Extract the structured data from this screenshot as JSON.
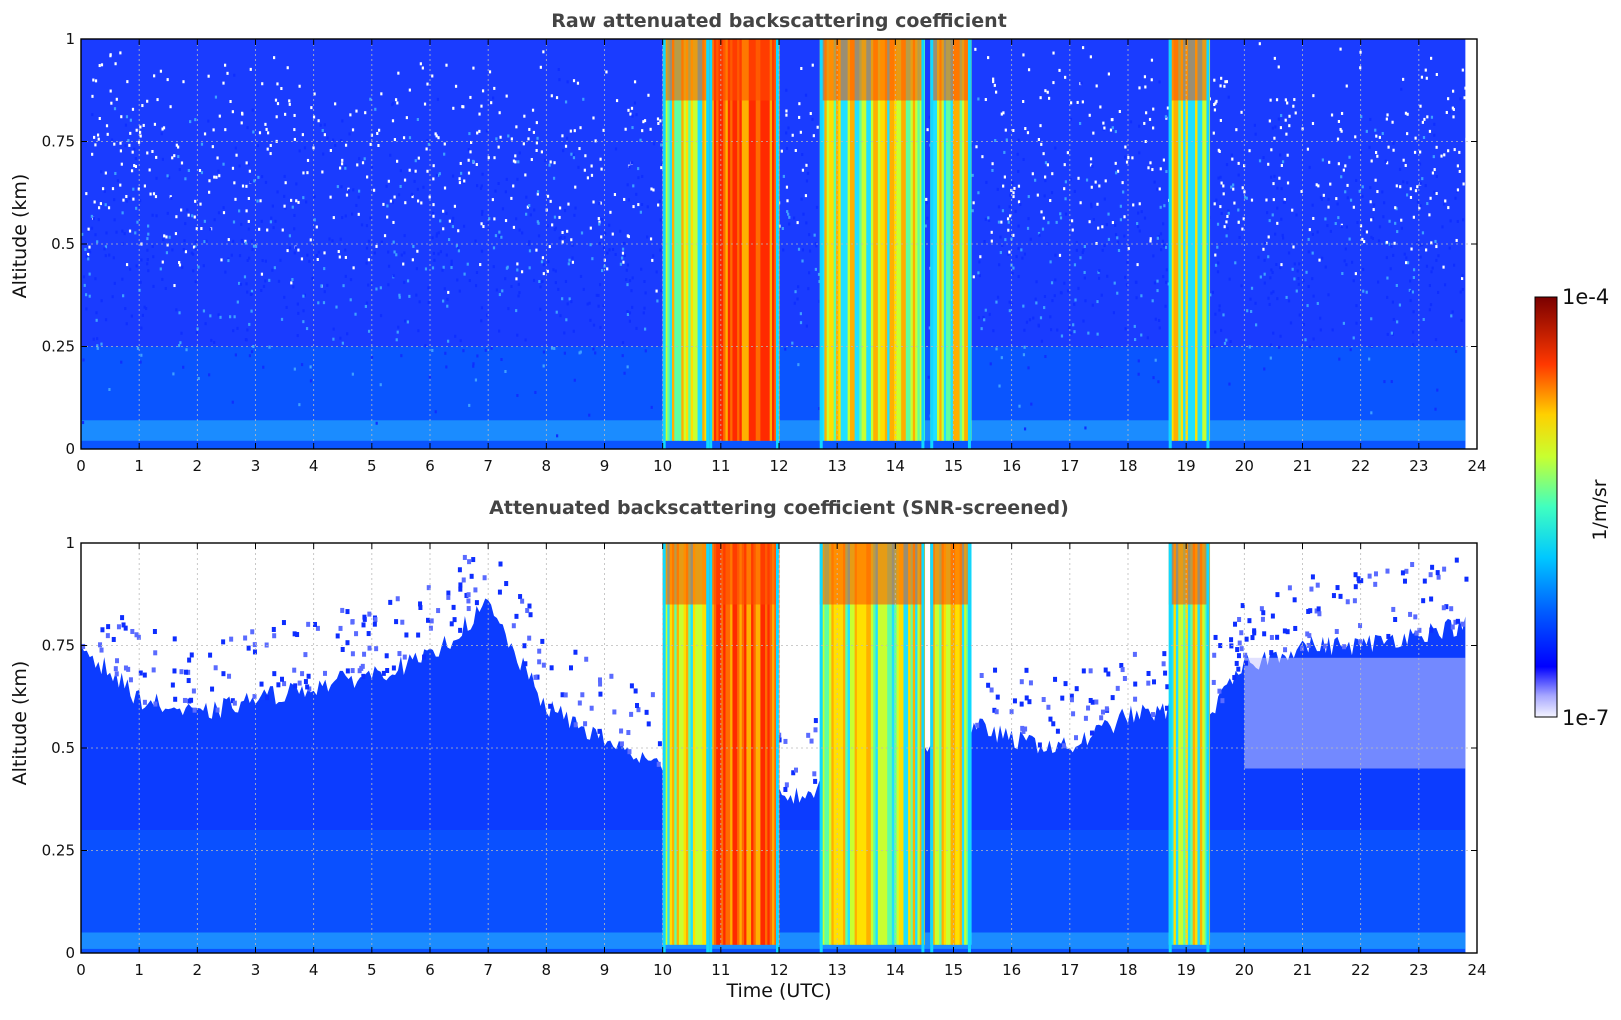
{
  "figure": {
    "colorbar": {
      "label": "1/m/sr",
      "max_label": "1e-4",
      "min_label": "1e-7",
      "scale": "log",
      "colormap": "jet (white-to-blue at low end, dark red at high end)"
    }
  },
  "chart_data": [
    {
      "type": "heatmap",
      "title": "Raw attenuated backscattering coefficient",
      "xlabel": "",
      "ylabel": "Altitude (km)",
      "xlim": [
        0,
        24
      ],
      "ylim": [
        0,
        1
      ],
      "xticks": [
        "0",
        "1",
        "2",
        "3",
        "4",
        "5",
        "6",
        "7",
        "8",
        "9",
        "10",
        "11",
        "12",
        "13",
        "14",
        "15",
        "16",
        "17",
        "18",
        "19",
        "20",
        "21",
        "22",
        "23",
        "24"
      ],
      "yticks": [
        "0",
        "0.25",
        "0.5",
        "0.75",
        "1"
      ],
      "grid": true,
      "data_extent_x": [
        0,
        23.8
      ],
      "background": "noisy blue (~1e-6) throughout, lighter/white speckle aloft",
      "cloud_bands": [
        {
          "start": 10.0,
          "end": 10.8,
          "intensity": "mixed green-red streaks"
        },
        {
          "start": 10.8,
          "end": 12.0,
          "intensity": "red-orange core, peak near 1e-4"
        },
        {
          "start": 12.7,
          "end": 14.5,
          "intensity": "yellow-green, red-orange top"
        },
        {
          "start": 14.6,
          "end": 15.3,
          "intensity": "yellow-green with red top"
        },
        {
          "start": 18.7,
          "end": 19.4,
          "intensity": "yellow-green with red streaks"
        }
      ]
    },
    {
      "type": "heatmap",
      "title": "Attenuated backscattering coefficient (SNR-screened)",
      "xlabel": "Time (UTC)",
      "ylabel": "Altitude (km)",
      "xlim": [
        0,
        24
      ],
      "ylim": [
        0,
        1
      ],
      "xticks": [
        "0",
        "1",
        "2",
        "3",
        "4",
        "5",
        "6",
        "7",
        "8",
        "9",
        "10",
        "11",
        "12",
        "13",
        "14",
        "15",
        "16",
        "17",
        "18",
        "19",
        "20",
        "21",
        "22",
        "23",
        "24"
      ],
      "yticks": [
        "0",
        "0.25",
        "0.5",
        "0.75",
        "1"
      ],
      "grid": true,
      "data_extent_x": [
        0,
        23.8
      ],
      "background": "blue boundary layer, white (screened) above a variable top",
      "screened_top_km": [
        [
          0,
          0.75
        ],
        [
          1,
          0.62
        ],
        [
          2,
          0.58
        ],
        [
          3,
          0.62
        ],
        [
          4,
          0.65
        ],
        [
          5,
          0.68
        ],
        [
          6,
          0.72
        ],
        [
          7,
          0.85
        ],
        [
          7.5,
          0.72
        ],
        [
          8,
          0.6
        ],
        [
          9,
          0.52
        ],
        [
          10,
          0.45
        ],
        [
          12.3,
          0.38
        ],
        [
          15.5,
          0.55
        ],
        [
          16,
          0.52
        ],
        [
          17,
          0.5
        ],
        [
          18,
          0.58
        ],
        [
          19.5,
          0.6
        ],
        [
          20,
          0.7
        ],
        [
          21,
          0.75
        ],
        [
          22,
          0.75
        ],
        [
          23,
          0.78
        ],
        [
          23.8,
          0.8
        ]
      ],
      "cloud_bands": [
        {
          "start": 10.0,
          "end": 10.8,
          "intensity": "mixed green-red streaks"
        },
        {
          "start": 10.8,
          "end": 12.0,
          "intensity": "red-orange core, peak near 1e-4"
        },
        {
          "start": 12.7,
          "end": 14.5,
          "intensity": "yellow-green, red-orange top"
        },
        {
          "start": 14.6,
          "end": 15.3,
          "intensity": "yellow-green with red top"
        },
        {
          "start": 18.7,
          "end": 19.4,
          "intensity": "yellow-green with red streaks"
        }
      ]
    }
  ]
}
